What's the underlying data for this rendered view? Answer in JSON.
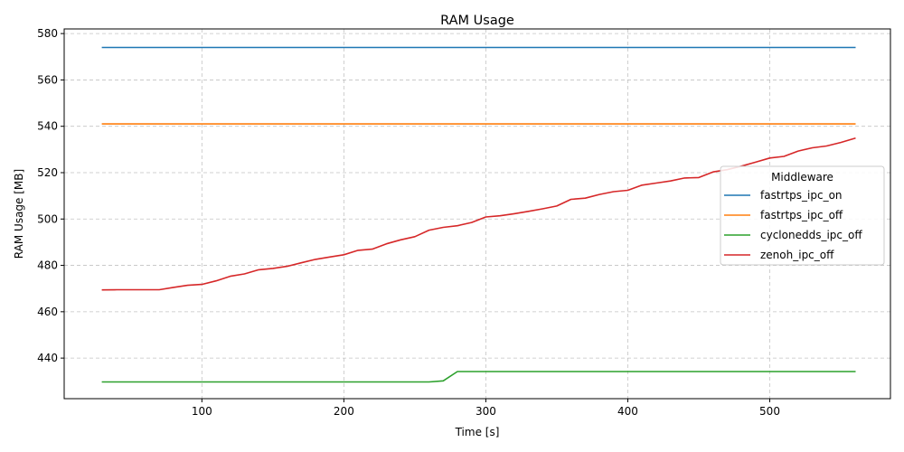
{
  "chart_data": {
    "type": "line",
    "title": "RAM Usage",
    "xlabel": "Time [s]",
    "ylabel": "RAM Usage [MB]",
    "xlim": [
      3,
      585
    ],
    "ylim": [
      422.5,
      582
    ],
    "xticks": [
      100,
      200,
      300,
      400,
      500
    ],
    "yticks": [
      440,
      460,
      480,
      500,
      520,
      540,
      560,
      580
    ],
    "grid": true,
    "legend": {
      "title": "Middleware",
      "position": "center-right"
    },
    "x": [
      30,
      40,
      50,
      60,
      70,
      80,
      90,
      100,
      110,
      120,
      130,
      140,
      150,
      160,
      170,
      180,
      190,
      200,
      210,
      220,
      230,
      240,
      250,
      260,
      270,
      280,
      290,
      300,
      310,
      320,
      330,
      340,
      350,
      360,
      370,
      380,
      390,
      400,
      410,
      420,
      430,
      440,
      450,
      460,
      470,
      480,
      490,
      500,
      510,
      520,
      530,
      540,
      550,
      560
    ],
    "series": [
      {
        "name": "fastrtps_ipc_on",
        "color": "#1f77b4",
        "values": [
          574,
          574,
          574,
          574,
          574,
          574,
          574,
          574,
          574,
          574,
          574,
          574,
          574,
          574,
          574,
          574,
          574,
          574,
          574,
          574,
          574,
          574,
          574,
          574,
          574,
          574,
          574,
          574,
          574,
          574,
          574,
          574,
          574,
          574,
          574,
          574,
          574,
          574,
          574,
          574,
          574,
          574,
          574,
          574,
          574,
          574,
          574,
          574,
          574,
          574,
          574,
          574,
          574,
          574
        ]
      },
      {
        "name": "fastrtps_ipc_off",
        "color": "#ff7f0e",
        "values": [
          541,
          541,
          541,
          541,
          541,
          541,
          541,
          541,
          541,
          541,
          541,
          541,
          541,
          541,
          541,
          541,
          541,
          541,
          541,
          541,
          541,
          541,
          541,
          541,
          541,
          541,
          541,
          541,
          541,
          541,
          541,
          541,
          541,
          541,
          541,
          541,
          541,
          541,
          541,
          541,
          541,
          541,
          541,
          541,
          541,
          541,
          541,
          541,
          541,
          541,
          541,
          541,
          541,
          541
        ]
      },
      {
        "name": "cyclonedds_ipc_off",
        "color": "#2ca02c",
        "values": [
          429.7,
          429.7,
          429.7,
          429.7,
          429.7,
          429.7,
          429.7,
          429.7,
          429.7,
          429.7,
          429.7,
          429.7,
          429.7,
          429.7,
          429.7,
          429.7,
          429.7,
          429.7,
          429.7,
          429.7,
          429.7,
          429.7,
          429.7,
          429.7,
          430.2,
          434.2,
          434.2,
          434.2,
          434.2,
          434.2,
          434.2,
          434.2,
          434.2,
          434.2,
          434.2,
          434.2,
          434.2,
          434.2,
          434.2,
          434.2,
          434.2,
          434.2,
          434.2,
          434.2,
          434.2,
          434.2,
          434.2,
          434.2,
          434.2,
          434.2,
          434.2,
          434.2,
          434.2,
          434.2
        ]
      },
      {
        "name": "zenoh_ipc_off",
        "color": "#d62728",
        "values": [
          469.4,
          469.5,
          469.5,
          469.5,
          469.5,
          470.5,
          471.4,
          471.8,
          473.3,
          475.3,
          476.3,
          478.1,
          478.7,
          479.6,
          481.1,
          482.6,
          483.6,
          484.6,
          486.5,
          487.0,
          489.3,
          491.0,
          492.4,
          495.2,
          496.4,
          497.1,
          498.5,
          500.9,
          501.4,
          502.3,
          503.3,
          504.4,
          505.6,
          508.5,
          509.0,
          510.6,
          511.8,
          512.4,
          514.6,
          515.5,
          516.4,
          517.7,
          517.9,
          520.3,
          521.3,
          522.8,
          524.5,
          526.3,
          527.0,
          529.3,
          530.7,
          531.5,
          533.0,
          534.8
        ]
      }
    ]
  }
}
